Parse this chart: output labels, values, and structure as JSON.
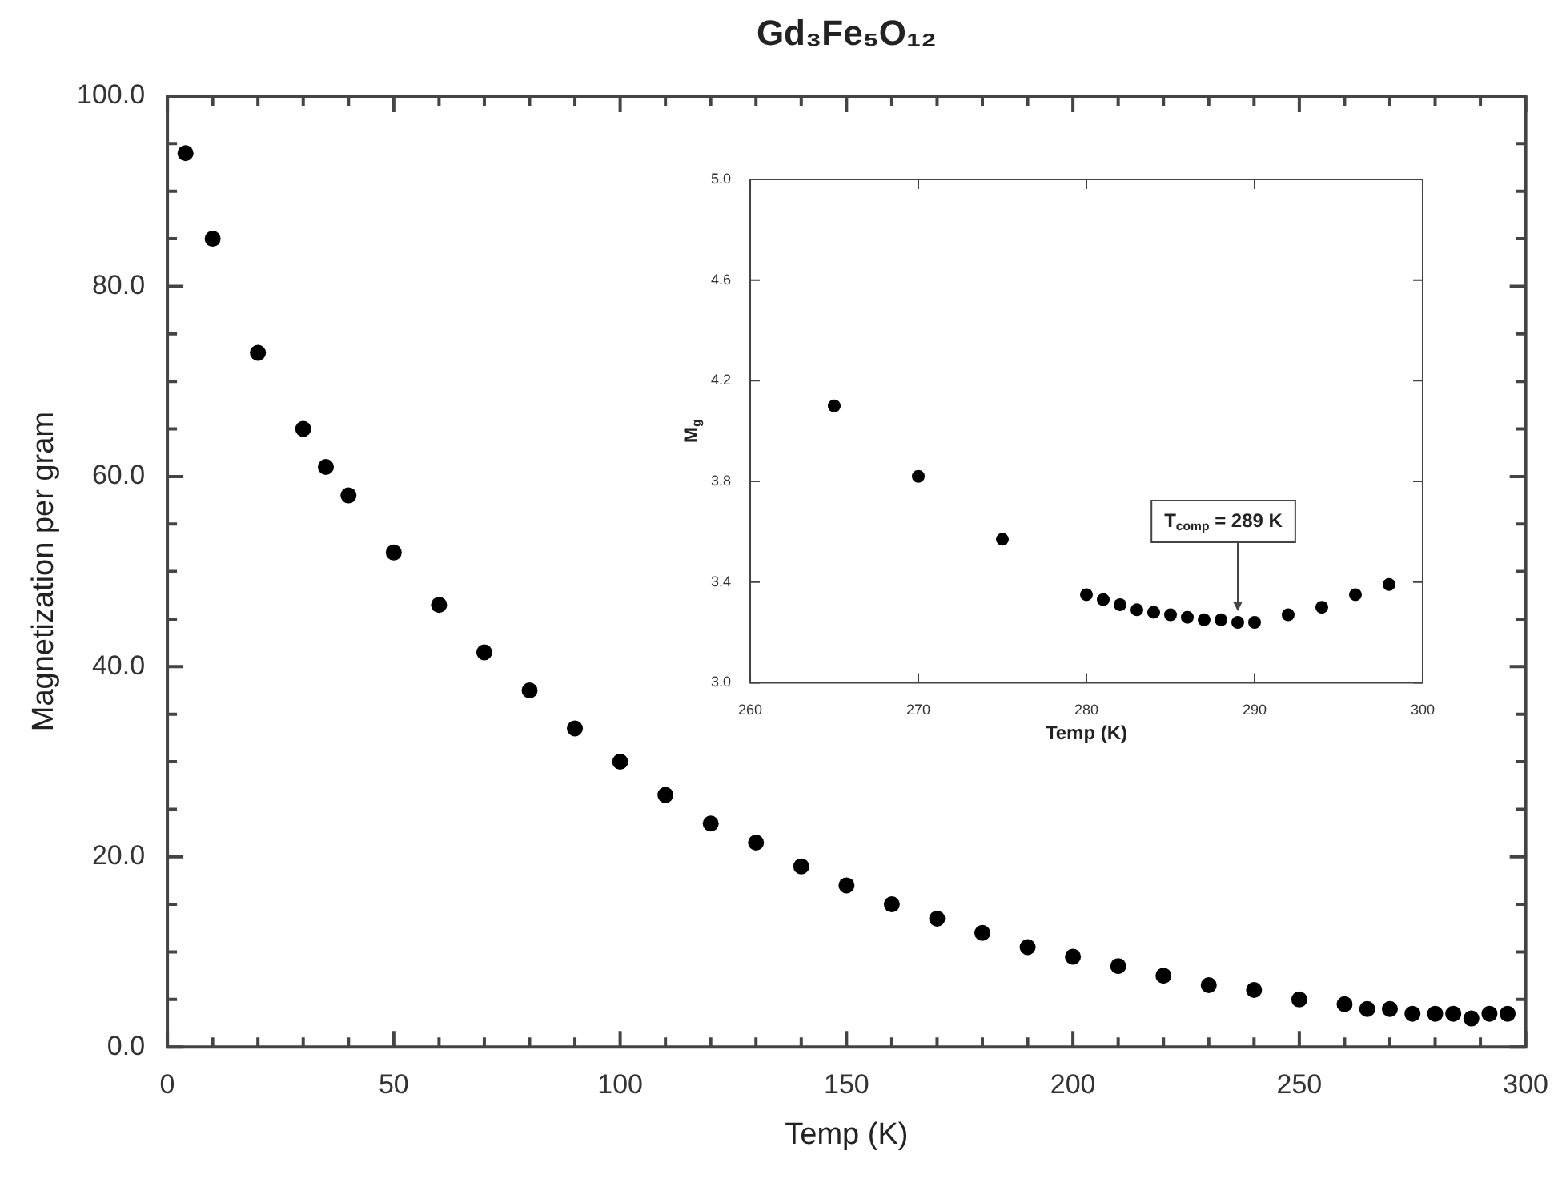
{
  "chart_data": [
    {
      "type": "scatter",
      "title": "Gd₃Fe₅O₁₂",
      "xlabel": "Temp (K)",
      "ylabel": "Magnetization per gram",
      "marker": "circle",
      "grid": false,
      "legend": false,
      "x": [
        4,
        10,
        20,
        30,
        35,
        40,
        50,
        60,
        70,
        80,
        90,
        100,
        110,
        120,
        130,
        140,
        150,
        160,
        170,
        180,
        190,
        200,
        210,
        220,
        230,
        240,
        250,
        260,
        265,
        270,
        275,
        280,
        284,
        288,
        292,
        296
      ],
      "series": [
        {
          "color": "#000000",
          "values": [
            94,
            85,
            73,
            65,
            61,
            58,
            52,
            46.5,
            41.5,
            37.5,
            33.5,
            30,
            26.5,
            23.5,
            21.5,
            19,
            17,
            15,
            13.5,
            12,
            10.5,
            9.5,
            8.5,
            7.5,
            6.5,
            6,
            5,
            4.5,
            4,
            4,
            3.5,
            3.5,
            3.5,
            3,
            3.5,
            3.5
          ]
        }
      ],
      "xlim": [
        0,
        300
      ],
      "xticks": [
        0,
        {
          "value": 10,
          "label": null
        },
        {
          "value": 20,
          "label": null
        },
        {
          "value": 30,
          "label": null
        },
        {
          "value": 40,
          "label": null
        },
        50,
        {
          "value": 60,
          "label": null
        },
        {
          "value": 70,
          "label": null
        },
        {
          "value": 80,
          "label": null
        },
        {
          "value": 90,
          "label": null
        },
        100,
        {
          "value": 110,
          "label": null
        },
        {
          "value": 120,
          "label": null
        },
        {
          "value": 130,
          "label": null
        },
        {
          "value": 140,
          "label": null
        },
        150,
        {
          "value": 160,
          "label": null
        },
        {
          "value": 170,
          "label": null
        },
        {
          "value": 180,
          "label": null
        },
        {
          "value": 190,
          "label": null
        },
        200,
        {
          "value": 210,
          "label": null
        },
        {
          "value": 220,
          "label": null
        },
        {
          "value": 230,
          "label": null
        },
        {
          "value": 240,
          "label": null
        },
        250,
        {
          "value": 260,
          "label": null
        },
        {
          "value": 270,
          "label": null
        },
        {
          "value": 280,
          "label": null
        },
        {
          "value": 290,
          "label": null
        },
        300
      ],
      "ylim": [
        0,
        100
      ],
      "yticks": [
        {
          "value": 0,
          "label": "0.0"
        },
        {
          "value": 5,
          "label": null
        },
        {
          "value": 10,
          "label": null
        },
        {
          "value": 15,
          "label": null
        },
        {
          "value": 20,
          "label": "20.0"
        },
        {
          "value": 25,
          "label": null
        },
        {
          "value": 30,
          "label": null
        },
        {
          "value": 35,
          "label": null
        },
        {
          "value": 40,
          "label": "40.0"
        },
        {
          "value": 45,
          "label": null
        },
        {
          "value": 50,
          "label": null
        },
        {
          "value": 55,
          "label": null
        },
        {
          "value": 60,
          "label": "60.0"
        },
        {
          "value": 65,
          "label": null
        },
        {
          "value": 70,
          "label": null
        },
        {
          "value": 75,
          "label": null
        },
        {
          "value": 80,
          "label": "80.0"
        },
        {
          "value": 85,
          "label": null
        },
        {
          "value": 90,
          "label": null
        },
        {
          "value": 95,
          "label": null
        },
        {
          "value": 100,
          "label": "100.0"
        }
      ]
    },
    {
      "type": "scatter",
      "xlabel": "Temp (K)",
      "ylabel": "M$_{g}$",
      "marker": "circle",
      "grid": false,
      "legend": false,
      "x": [
        265,
        270,
        275,
        280,
        281,
        282,
        283,
        284,
        285,
        286,
        287,
        288,
        289,
        290,
        292,
        294,
        296,
        298
      ],
      "series": [
        {
          "color": "#000000",
          "values": [
            4.1,
            3.82,
            3.57,
            3.35,
            3.33,
            3.31,
            3.29,
            3.28,
            3.27,
            3.26,
            3.25,
            3.25,
            3.24,
            3.24,
            3.27,
            3.3,
            3.35,
            3.39
          ]
        }
      ],
      "xlim": [
        260,
        300
      ],
      "xticks": [
        260,
        270,
        280,
        290,
        300
      ],
      "ylim": [
        3.0,
        5.0
      ],
      "yticks": [
        {
          "value": 3.0,
          "label": "3.0"
        },
        3.4,
        3.8,
        4.2,
        4.6,
        {
          "value": 5.0,
          "label": "5.0"
        }
      ],
      "annotations": [
        {
          "text": "T$_{comp}$ = 289 K",
          "x": 289,
          "y": 3.24
        }
      ]
    }
  ]
}
